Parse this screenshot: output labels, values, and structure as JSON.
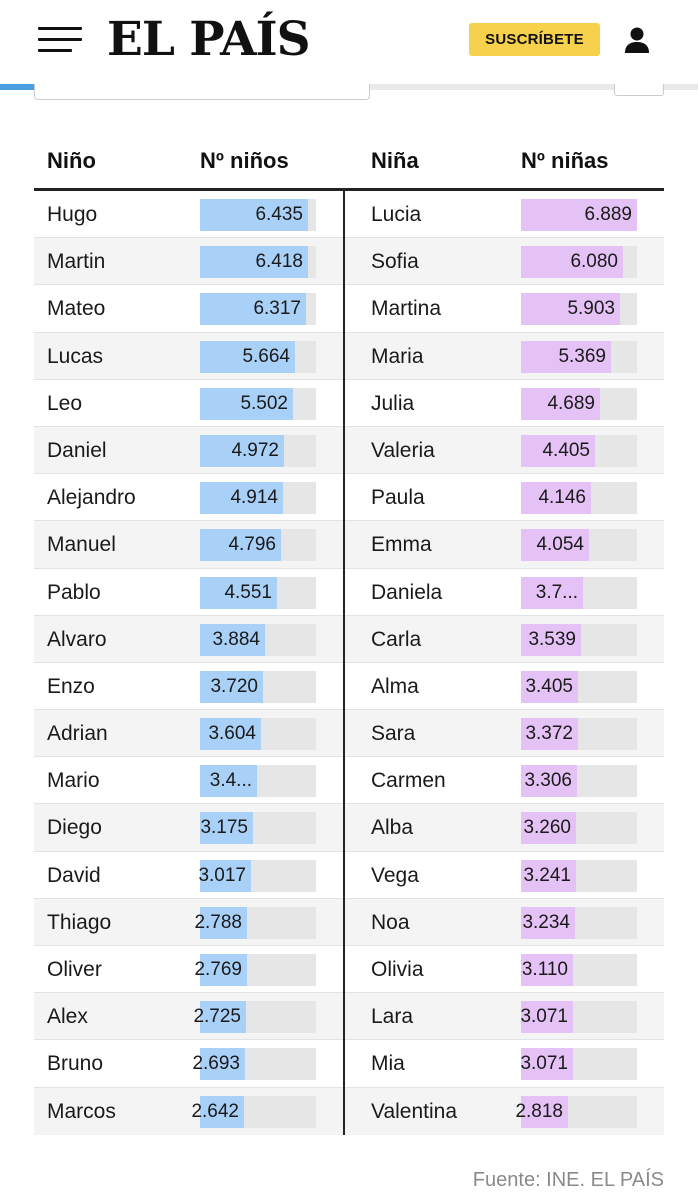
{
  "header": {
    "logo": "EL PAÍS",
    "subscribe_label": "SUSCRÍBETE",
    "progress": 0.32
  },
  "table": {
    "headers": {
      "boy_name": "Niño",
      "boy_count": "Nº niños",
      "girl_name": "Niña",
      "girl_count": "Nº niñas"
    },
    "max_value": 6889,
    "rows": [
      {
        "boy": "Hugo",
        "boy_label": "6.435",
        "boy_value": 6435,
        "girl": "Lucia",
        "girl_label": "6.889",
        "girl_value": 6889
      },
      {
        "boy": "Martin",
        "boy_label": "6.418",
        "boy_value": 6418,
        "girl": "Sofia",
        "girl_label": "6.080",
        "girl_value": 6080
      },
      {
        "boy": "Mateo",
        "boy_label": "6.317",
        "boy_value": 6317,
        "girl": "Martina",
        "girl_label": "5.903",
        "girl_value": 5903
      },
      {
        "boy": "Lucas",
        "boy_label": "5.664",
        "boy_value": 5664,
        "girl": "Maria",
        "girl_label": "5.369",
        "girl_value": 5369
      },
      {
        "boy": "Leo",
        "boy_label": "5.502",
        "boy_value": 5502,
        "girl": "Julia",
        "girl_label": "4.689",
        "girl_value": 4689
      },
      {
        "boy": "Daniel",
        "boy_label": "4.972",
        "boy_value": 4972,
        "girl": "Valeria",
        "girl_label": "4.405",
        "girl_value": 4405
      },
      {
        "boy": "Alejandro",
        "boy_label": "4.914",
        "boy_value": 4914,
        "girl": "Paula",
        "girl_label": "4.146",
        "girl_value": 4146
      },
      {
        "boy": "Manuel",
        "boy_label": "4.796",
        "boy_value": 4796,
        "girl": "Emma",
        "girl_label": "4.054",
        "girl_value": 4054
      },
      {
        "boy": "Pablo",
        "boy_label": "4.551",
        "boy_value": 4551,
        "girl": "Daniela",
        "girl_label": "3.7...",
        "girl_value": 3700
      },
      {
        "boy": "Alvaro",
        "boy_label": "3.884",
        "boy_value": 3884,
        "girl": "Carla",
        "girl_label": "3.539",
        "girl_value": 3539
      },
      {
        "boy": "Enzo",
        "boy_label": "3.720",
        "boy_value": 3720,
        "girl": "Alma",
        "girl_label": "3.405",
        "girl_value": 3405
      },
      {
        "boy": "Adrian",
        "boy_label": "3.604",
        "boy_value": 3604,
        "girl": "Sara",
        "girl_label": "3.372",
        "girl_value": 3372
      },
      {
        "boy": "Mario",
        "boy_label": "3.4...",
        "boy_value": 3400,
        "girl": "Carmen",
        "girl_label": "3.306",
        "girl_value": 3306
      },
      {
        "boy": "Diego",
        "boy_label": "3.175",
        "boy_value": 3175,
        "girl": "Alba",
        "girl_label": "3.260",
        "girl_value": 3260
      },
      {
        "boy": "David",
        "boy_label": "3.017",
        "boy_value": 3017,
        "girl": "Vega",
        "girl_label": "3.241",
        "girl_value": 3241
      },
      {
        "boy": "Thiago",
        "boy_label": "2.788",
        "boy_value": 2788,
        "girl": "Noa",
        "girl_label": "3.234",
        "girl_value": 3234
      },
      {
        "boy": "Oliver",
        "boy_label": "2.769",
        "boy_value": 2769,
        "girl": "Olivia",
        "girl_label": "3.110",
        "girl_value": 3110
      },
      {
        "boy": "Alex",
        "boy_label": "2.725",
        "boy_value": 2725,
        "girl": "Lara",
        "girl_label": "3.071",
        "girl_value": 3071
      },
      {
        "boy": "Bruno",
        "boy_label": "2.693",
        "boy_value": 2693,
        "girl": "Mia",
        "girl_label": "3.071",
        "girl_value": 3071
      },
      {
        "boy": "Marcos",
        "boy_label": "2.642",
        "boy_value": 2642,
        "girl": "Valentina",
        "girl_label": "2.818",
        "girl_value": 2818
      }
    ]
  },
  "source": "Fuente: INE. EL PAÍS",
  "colors": {
    "boy_bar": "#a9d0f7",
    "girl_bar": "#e5c2f6",
    "subscribe_bg": "#f7d14c",
    "progress": "#4a9ee0"
  },
  "icons": {
    "menu": "hamburger-menu-icon",
    "user": "user-icon"
  }
}
